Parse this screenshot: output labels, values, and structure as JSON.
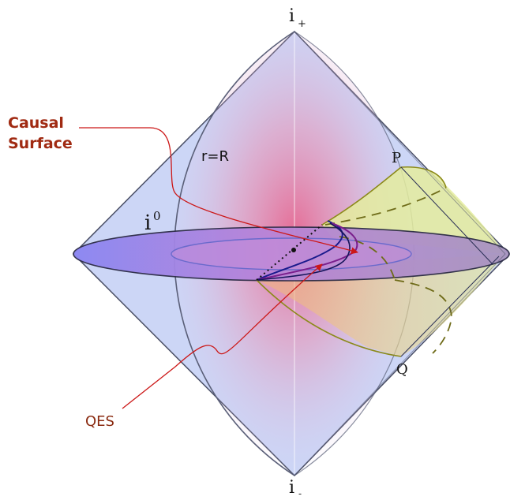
{
  "labels": {
    "i_plus": "i",
    "i_plus_sub": "+",
    "i_minus": "i",
    "i_minus_sub": "-",
    "i_zero": "i",
    "i_zero_sup": "0",
    "r_equals": "r=R",
    "point_p": "P",
    "point_q": "Q",
    "causal_surface_line1": "Causal",
    "causal_surface_line2": "Surface",
    "qes": "QES"
  },
  "colors": {
    "diamond_fill": "#ccd6f6",
    "diamond_stroke": "#4a4f66",
    "disk_fill": "#8f8cef",
    "cone_fill": "#e2eaa2",
    "cone_stroke": "#8c8a1a",
    "annotation_red": "#cc1818",
    "caption_red": "#a02a12",
    "surface_blue": "#1a1a8c",
    "surface_purple": "#7a1e8c"
  }
}
